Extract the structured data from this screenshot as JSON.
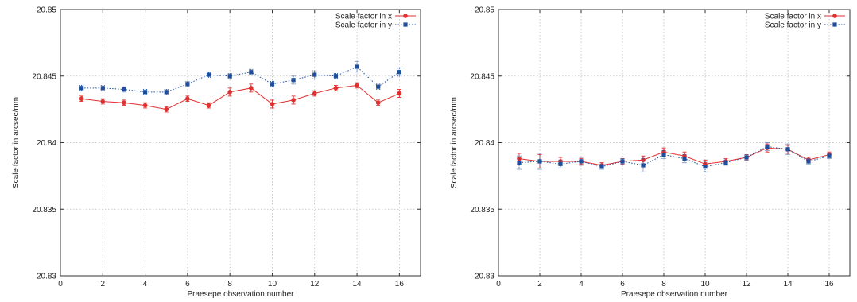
{
  "chart_data": [
    {
      "type": "scatter",
      "xlabel": "Praesepe observation number",
      "ylabel": "Scale factor in arcsec/mm",
      "xlim": [
        0,
        17
      ],
      "ylim": [
        20.83,
        20.85
      ],
      "xticks": [
        "0",
        "2",
        "4",
        "6",
        "8",
        "10",
        "12",
        "14",
        "16"
      ],
      "yticks": [
        "20.83",
        "20.835",
        "20.84",
        "20.845",
        "20.85"
      ],
      "grid": true,
      "legend_position": "top-right",
      "x": [
        1,
        2,
        3,
        4,
        5,
        6,
        7,
        8,
        9,
        10,
        11,
        12,
        13,
        14,
        15,
        16
      ],
      "series": [
        {
          "name": "Scale factor in x",
          "color": "#e0302f",
          "marker": "circle",
          "line_style": "solid",
          "values": [
            20.8433,
            20.8431,
            20.843,
            20.8428,
            20.8425,
            20.8433,
            20.8428,
            20.8438,
            20.8441,
            20.8429,
            20.8432,
            20.8437,
            20.8441,
            20.8443,
            20.843,
            20.8437
          ],
          "errors": [
            0.0002,
            0.0002,
            0.0002,
            0.0002,
            0.0002,
            0.0002,
            0.0002,
            0.0003,
            0.0003,
            0.0003,
            0.0003,
            0.0002,
            0.0002,
            0.0002,
            0.0002,
            0.0003
          ]
        },
        {
          "name": "Scale factor in y",
          "color": "#1f4e9c",
          "marker": "square",
          "line_style": "dotted",
          "values": [
            20.8441,
            20.8441,
            20.844,
            20.8438,
            20.8438,
            20.8444,
            20.8451,
            20.845,
            20.8453,
            20.8444,
            20.8447,
            20.8451,
            20.845,
            20.8457,
            20.8442,
            20.8453
          ],
          "errors": [
            0.0002,
            0.0002,
            0.0002,
            0.0002,
            0.0002,
            0.0002,
            0.0002,
            0.0002,
            0.0002,
            0.0002,
            0.0003,
            0.0003,
            0.0002,
            0.0004,
            0.0002,
            0.0003
          ]
        }
      ]
    },
    {
      "type": "scatter",
      "xlabel": "Praesepe observation number",
      "ylabel": "Scale factor in arcsec/mm",
      "xlim": [
        0,
        17
      ],
      "ylim": [
        20.83,
        20.85
      ],
      "xticks": [
        "0",
        "2",
        "4",
        "6",
        "8",
        "10",
        "12",
        "14",
        "16"
      ],
      "yticks": [
        "20.83",
        "20.835",
        "20.84",
        "20.845",
        "20.85"
      ],
      "grid": true,
      "legend_position": "top-right",
      "x": [
        1,
        2,
        3,
        4,
        5,
        6,
        7,
        8,
        9,
        10,
        11,
        12,
        13,
        14,
        15,
        16
      ],
      "series": [
        {
          "name": "Scale factor in x",
          "color": "#e0302f",
          "marker": "circle",
          "line_style": "solid",
          "values": [
            20.8388,
            20.8386,
            20.8386,
            20.8386,
            20.8383,
            20.8386,
            20.8387,
            20.8393,
            20.839,
            20.8384,
            20.8386,
            20.8389,
            20.8396,
            20.8395,
            20.8387,
            20.8391
          ],
          "errors": [
            0.0004,
            0.0005,
            0.0003,
            0.0002,
            0.0002,
            0.0002,
            0.0003,
            0.0003,
            0.0003,
            0.0003,
            0.0002,
            0.0002,
            0.0003,
            0.0003,
            0.0002,
            0.0002
          ]
        },
        {
          "name": "Scale factor in y",
          "color": "#1f4e9c",
          "marker": "square",
          "line_style": "dotted",
          "values": [
            20.8385,
            20.8386,
            20.8384,
            20.8386,
            20.8382,
            20.8386,
            20.8383,
            20.8391,
            20.8388,
            20.8382,
            20.8385,
            20.8389,
            20.8397,
            20.8395,
            20.8386,
            20.839
          ],
          "errors": [
            0.0005,
            0.0006,
            0.0003,
            0.0003,
            0.0002,
            0.0002,
            0.0005,
            0.0003,
            0.0003,
            0.0004,
            0.0002,
            0.0002,
            0.0003,
            0.0004,
            0.0002,
            0.0002
          ]
        }
      ]
    }
  ]
}
